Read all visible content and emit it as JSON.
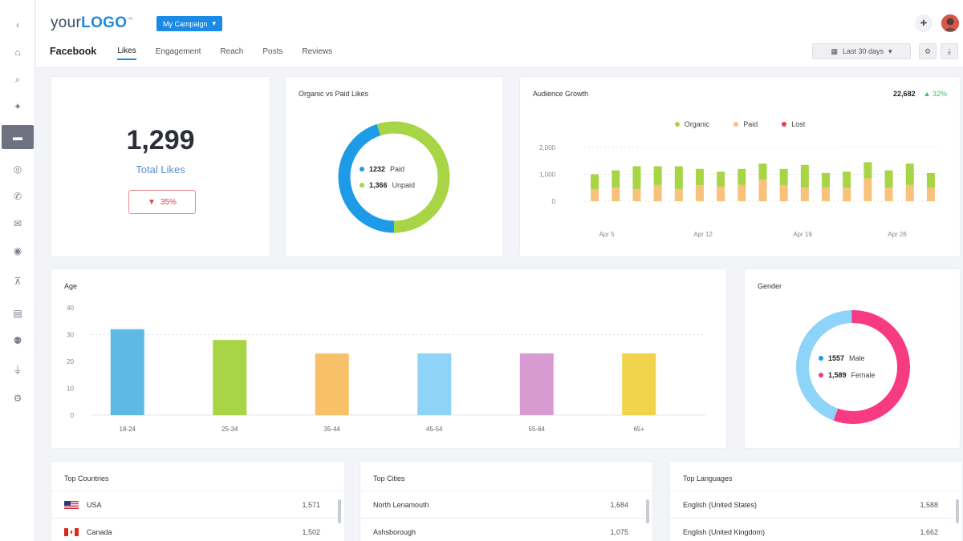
{
  "app": {
    "logo_text": "your",
    "logo_bold": "LOGO",
    "logo_tm": "™",
    "campaign": "My Campaign"
  },
  "nav": {
    "title": "Facebook",
    "tabs": [
      "Likes",
      "Engagement",
      "Reach",
      "Posts",
      "Reviews"
    ],
    "active_tab": "Likes",
    "date_range": "Last 30 days"
  },
  "rail_icons": [
    "chevron-left-icon",
    "dashboard-icon",
    "search-icon",
    "megaphone-icon",
    "chat-icon",
    "target-icon",
    "phone-icon",
    "mail-icon",
    "location-icon",
    "cart-icon",
    "building-icon",
    "user-icon",
    "plug-icon",
    "settings-icon"
  ],
  "total_likes": {
    "value": "1,299",
    "label": "Total Likes",
    "delta": "35%",
    "delta_color": "#e0424f"
  },
  "organic_paid": {
    "title": "Organic vs Paid Likes",
    "paid": {
      "value": "1232",
      "label": "Paid",
      "fraction": 0.45,
      "color": "#1e9be8"
    },
    "unpaid": {
      "value": "1,366",
      "label": "Unpaid",
      "fraction": 0.55,
      "color": "#a7d545"
    }
  },
  "audience_growth": {
    "title": "Audience Growth",
    "total": "22,682",
    "change": "▲ 32%",
    "legend": [
      {
        "label": "Organic",
        "color": "#a7d545"
      },
      {
        "label": "Paid",
        "color": "#f8c27a"
      },
      {
        "label": "Lost",
        "color": "#e0424f"
      }
    ]
  },
  "chart_data": [
    {
      "type": "bar",
      "title": "Audience Growth",
      "y_ticks": [
        "2,000",
        "1,000",
        "0"
      ],
      "x_ticks": [
        "Apr 5",
        "Apr 12",
        "Apr 19",
        "Apr 26"
      ],
      "ylim": [
        0,
        2000
      ],
      "series": [
        {
          "name": "Organic",
          "color": "#a7d545",
          "values": [
            550,
            650,
            850,
            700,
            850,
            600,
            550,
            600,
            600,
            600,
            850,
            550,
            600,
            600,
            650,
            800,
            550
          ]
        },
        {
          "name": "Paid",
          "color": "#f8c27a",
          "values": [
            450,
            500,
            450,
            600,
            450,
            600,
            550,
            600,
            800,
            600,
            500,
            500,
            500,
            850,
            500,
            600,
            500
          ]
        }
      ]
    },
    {
      "type": "bar",
      "title": "Age",
      "categories": [
        "18-24",
        "25-34",
        "35-44",
        "45-54",
        "55-64",
        "65+"
      ],
      "values": [
        32,
        28,
        23,
        23,
        23,
        23
      ],
      "colors": [
        "#5fb8e6",
        "#a7d545",
        "#f8c068",
        "#8fd3f8",
        "#d79ad1",
        "#f1d24b"
      ],
      "y_ticks": [
        "40",
        "30",
        "20",
        "10",
        "0"
      ],
      "ylim": [
        0,
        40
      ]
    }
  ],
  "gender": {
    "title": "Gender",
    "male": {
      "value": "1557",
      "label": "Male",
      "fraction": 0.44,
      "color": "#8ed3f8"
    },
    "female": {
      "value": "1,589",
      "label": "Female",
      "fraction": 0.56,
      "color": "#f73a82"
    }
  },
  "top_countries": {
    "title": "Top Countries",
    "rows": [
      {
        "name": "USA",
        "value": "1,571"
      },
      {
        "name": "Canada",
        "value": "1,502"
      }
    ]
  },
  "top_cities": {
    "title": "Top Cities",
    "rows": [
      {
        "name": "North Lenamouth",
        "value": "1,684"
      },
      {
        "name": "Ashsborough",
        "value": "1,075"
      }
    ]
  },
  "top_languages": {
    "title": "Top Languages",
    "rows": [
      {
        "name": "English (United States)",
        "value": "1,588"
      },
      {
        "name": "English (United Kingdom)",
        "value": "1,662"
      }
    ]
  }
}
